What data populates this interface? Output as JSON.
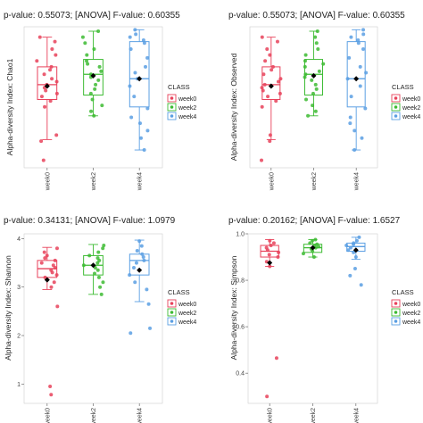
{
  "chart_data": [
    {
      "type": "box",
      "title": "p-value: 0.55073; [ANOVA] F-value: 0.60355",
      "ylabel": "Alpha-diversity Index: Chao1",
      "categories": [
        "week0",
        "week2",
        "week4"
      ],
      "ylim": [
        20,
        115
      ],
      "yticks": [],
      "legend": {
        "title": "CLASS",
        "items": [
          "week0",
          "week2",
          "week4"
        ],
        "placement": "right"
      },
      "boxes": [
        {
          "q1": 66,
          "median": 76,
          "q3": 88,
          "whisker_low": 39,
          "whisker_high": 108,
          "mean": 75
        },
        {
          "q1": 69,
          "median": 83,
          "q3": 93,
          "whisker_low": 55,
          "whisker_high": 112,
          "mean": 82
        },
        {
          "q1": 61,
          "median": 80,
          "q3": 105,
          "whisker_low": 32,
          "whisker_high": 113,
          "mean": 80
        }
      ],
      "points": [
        [
          25,
          38,
          42,
          61,
          65,
          68,
          70,
          72,
          74,
          76,
          78,
          80,
          83,
          86,
          88,
          92,
          96,
          100,
          105,
          108
        ],
        [
          55,
          58,
          62,
          66,
          70,
          73,
          76,
          79,
          81,
          83,
          85,
          88,
          90,
          92,
          96,
          100,
          104,
          108,
          112
        ],
        [
          32,
          40,
          45,
          50,
          54,
          60,
          68,
          75,
          80,
          84,
          88,
          94,
          100,
          104,
          106,
          108,
          110,
          113
        ]
      ]
    },
    {
      "type": "box",
      "title": "p-value: 0.55073; [ANOVA] F-value: 0.60355",
      "ylabel": "Alpha-diversity Index: Observed",
      "categories": [
        "week0",
        "week2",
        "week4"
      ],
      "ylim": [
        20,
        115
      ],
      "yticks": [],
      "legend": {
        "title": "CLASS",
        "items": [
          "week0",
          "week2",
          "week4"
        ],
        "placement": "right"
      },
      "boxes": [
        {
          "q1": 66,
          "median": 76,
          "q3": 88,
          "whisker_low": 39,
          "whisker_high": 108,
          "mean": 75
        },
        {
          "q1": 69,
          "median": 83,
          "q3": 93,
          "whisker_low": 55,
          "whisker_high": 112,
          "mean": 82
        },
        {
          "q1": 61,
          "median": 80,
          "q3": 105,
          "whisker_low": 32,
          "whisker_high": 113,
          "mean": 80
        }
      ],
      "points": [
        [
          25,
          38,
          42,
          61,
          65,
          68,
          70,
          72,
          74,
          76,
          78,
          80,
          83,
          86,
          88,
          92,
          96,
          100,
          105,
          108
        ],
        [
          55,
          58,
          62,
          66,
          70,
          73,
          76,
          79,
          81,
          83,
          85,
          88,
          90,
          92,
          96,
          100,
          104,
          108,
          112
        ],
        [
          32,
          40,
          45,
          50,
          54,
          60,
          68,
          75,
          80,
          84,
          88,
          94,
          100,
          104,
          106,
          108,
          110,
          113
        ]
      ]
    },
    {
      "type": "box",
      "title": "p-value: 0.34131; [ANOVA] F-value: 1.0979",
      "ylabel": "Alpha-diversity Index: Shannon",
      "categories": [
        "week0",
        "week2",
        "week4"
      ],
      "ylim": [
        0.6,
        4.1
      ],
      "yticks": [
        "1",
        "2",
        "3",
        "4"
      ],
      "legend": {
        "title": "CLASS",
        "items": [
          "week0",
          "week2",
          "week4"
        ],
        "placement": "right"
      },
      "boxes": [
        {
          "q1": 3.2,
          "median": 3.38,
          "q3": 3.55,
          "whisker_low": 2.95,
          "whisker_high": 3.82,
          "mean": 3.15
        },
        {
          "q1": 3.25,
          "median": 3.45,
          "q3": 3.65,
          "whisker_low": 2.85,
          "whisker_high": 3.88,
          "mean": 3.45
        },
        {
          "q1": 3.25,
          "median": 3.55,
          "q3": 3.68,
          "whisker_low": 2.7,
          "whisker_high": 3.97,
          "mean": 3.35
        }
      ],
      "points": [
        [
          0.78,
          0.95,
          2.6,
          3.0,
          3.1,
          3.2,
          3.25,
          3.3,
          3.35,
          3.4,
          3.45,
          3.5,
          3.55,
          3.6,
          3.65,
          3.72,
          3.8
        ],
        [
          2.85,
          3.0,
          3.1,
          3.2,
          3.28,
          3.35,
          3.4,
          3.45,
          3.5,
          3.55,
          3.6,
          3.65,
          3.72,
          3.8,
          3.86
        ],
        [
          2.05,
          2.15,
          2.65,
          2.95,
          3.1,
          3.25,
          3.4,
          3.5,
          3.55,
          3.62,
          3.68,
          3.75,
          3.85,
          3.95
        ]
      ]
    },
    {
      "type": "box",
      "title": "p-value: 0.20162; [ANOVA] F-value: 1.6527",
      "ylabel": "Alpha-diversity Index: Simpson",
      "categories": [
        "week0",
        "week2",
        "week4"
      ],
      "ylim": [
        0.27,
        1.0
      ],
      "yticks": [
        "0.4",
        "0.6",
        "0.8",
        "1.0"
      ],
      "legend": {
        "title": "CLASS",
        "items": [
          "week0",
          "week2",
          "week4"
        ],
        "placement": "right"
      },
      "boxes": [
        {
          "q1": 0.9,
          "median": 0.925,
          "q3": 0.95,
          "whisker_low": 0.86,
          "whisker_high": 0.975,
          "mean": 0.875
        },
        {
          "q1": 0.92,
          "median": 0.94,
          "q3": 0.955,
          "whisker_low": 0.9,
          "whisker_high": 0.975,
          "mean": 0.94
        },
        {
          "q1": 0.925,
          "median": 0.945,
          "q3": 0.96,
          "whisker_low": 0.89,
          "whisker_high": 0.985,
          "mean": 0.93
        }
      ],
      "points": [
        [
          0.3,
          0.465,
          0.86,
          0.88,
          0.9,
          0.91,
          0.92,
          0.93,
          0.94,
          0.95,
          0.96,
          0.97
        ],
        [
          0.9,
          0.915,
          0.925,
          0.935,
          0.94,
          0.945,
          0.95,
          0.955,
          0.96,
          0.97,
          0.975
        ],
        [
          0.78,
          0.82,
          0.85,
          0.9,
          0.92,
          0.93,
          0.94,
          0.95,
          0.955,
          0.96,
          0.97,
          0.985
        ]
      ]
    }
  ],
  "colors": {
    "week0": "#e8425b",
    "week2": "#3dbb33",
    "week4": "#5b9fe3",
    "mean": "#000000"
  }
}
